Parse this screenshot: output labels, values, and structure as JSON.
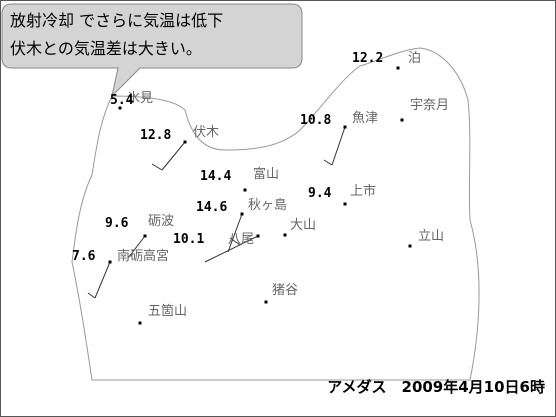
{
  "callout": {
    "lines": [
      "放射冷却 でさらに気温は低下",
      "伏木との気温差は大きい。"
    ]
  },
  "stations": [
    {
      "name": "泊",
      "temp": "12.2"
    },
    {
      "name": "氷見",
      "temp": "5.4"
    },
    {
      "name": "伏木",
      "temp": "12.8"
    },
    {
      "name": "魚津",
      "temp": "10.8"
    },
    {
      "name": "宇奈月"
    },
    {
      "name": "富山",
      "temp": "14.4"
    },
    {
      "name": "上市",
      "temp": "9.4"
    },
    {
      "name": "秋ヶ島",
      "temp": "14.6"
    },
    {
      "name": "砺波",
      "temp": "9.6"
    },
    {
      "name": "八尾",
      "temp": "10.1"
    },
    {
      "name": "大山"
    },
    {
      "name": "南砺高宮",
      "temp": "7.6"
    },
    {
      "name": "立山"
    },
    {
      "name": "猪谷"
    },
    {
      "name": "五箇山"
    }
  ],
  "footer": "アメダス　2009年4月10日6時"
}
